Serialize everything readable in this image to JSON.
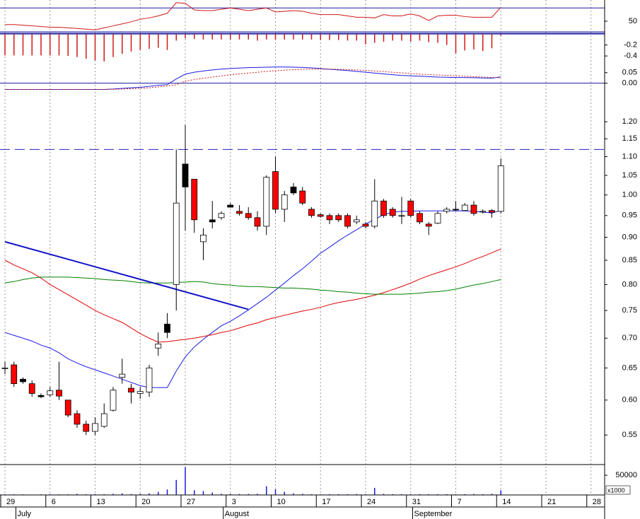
{
  "chart_data": [
    {
      "type": "line",
      "ylim": [
        34,
        82
      ],
      "yticks": [
        50
      ],
      "hlines": [
        70
      ],
      "hline_color": "#1a1aa0",
      "series": [
        {
          "color": "#d01818",
          "values": [
            45,
            45,
            44,
            43,
            42,
            41,
            41,
            40,
            39,
            38,
            37,
            40,
            43,
            46,
            49,
            53,
            55,
            58,
            62,
            78,
            77,
            67,
            66,
            66,
            68,
            70,
            68,
            66,
            68,
            70,
            64,
            65,
            66,
            65,
            62,
            60,
            60,
            60,
            58,
            56,
            56,
            55,
            60,
            58,
            58,
            61,
            58,
            51,
            58,
            59,
            59,
            57,
            56,
            56,
            56,
            71,
            null,
            null,
            null,
            null,
            null,
            null,
            null,
            null,
            null,
            null,
            null
          ]
        }
      ]
    },
    {
      "type": "bar",
      "ylim": [
        -0.54,
        0.04
      ],
      "yticks": [
        -0.2,
        -0.4
      ],
      "color": "#d01818",
      "hlines": [
        0
      ],
      "hline_color": "#1a1aa0",
      "values": [
        -0.39,
        -0.39,
        -0.39,
        -0.39,
        -0.39,
        -0.39,
        -0.39,
        -0.4,
        -0.42,
        -0.45,
        -0.48,
        -0.5,
        -0.42,
        -0.36,
        -0.32,
        -0.29,
        -0.27,
        -0.25,
        -0.29,
        -0.12,
        -0.08,
        -0.09,
        -0.1,
        -0.1,
        -0.1,
        -0.1,
        -0.1,
        -0.1,
        -0.12,
        -0.1,
        -0.1,
        -0.1,
        -0.1,
        -0.1,
        -0.1,
        -0.11,
        -0.11,
        -0.11,
        -0.12,
        -0.12,
        -0.19,
        -0.16,
        -0.14,
        -0.12,
        -0.12,
        -0.14,
        -0.12,
        -0.15,
        -0.16,
        -0.2,
        -0.35,
        -0.3,
        -0.28,
        -0.31,
        -0.26,
        -0.03,
        null,
        null,
        null,
        null,
        null,
        null,
        null,
        null,
        null,
        null,
        null
      ]
    },
    {
      "type": "line",
      "ylim": [
        -0.035,
        0.093
      ],
      "yticks": [
        0.05,
        {
          "value": 0,
          "label": "0.00"
        }
      ],
      "hlines": [
        0
      ],
      "hline_color": "#1a1aa0",
      "series": [
        {
          "color": "#1a1ae0",
          "values": [
            -0.03,
            -0.03,
            -0.03,
            -0.03,
            -0.03,
            -0.03,
            -0.03,
            -0.03,
            -0.03,
            -0.03,
            -0.03,
            -0.03,
            -0.028,
            -0.025,
            -0.022,
            -0.02,
            -0.015,
            -0.01,
            -0.007,
            0.02,
            0.043,
            0.052,
            0.058,
            0.063,
            0.067,
            0.07,
            0.072,
            0.074,
            0.075,
            0.076,
            0.077,
            0.077,
            0.076,
            0.075,
            0.073,
            0.07,
            0.066,
            0.063,
            0.06,
            0.056,
            0.052,
            0.048,
            0.044,
            0.04,
            0.037,
            0.035,
            0.033,
            0.031,
            0.029,
            0.028,
            0.027,
            0.027,
            0.026,
            0.025,
            0.024,
            0.03,
            null,
            null,
            null,
            null,
            null,
            null,
            null,
            null,
            null,
            null,
            null
          ]
        },
        {
          "color": "#d01818",
          "dash": true,
          "values": [
            -0.03,
            -0.03,
            -0.03,
            -0.03,
            -0.03,
            -0.03,
            -0.03,
            -0.03,
            -0.03,
            -0.03,
            -0.03,
            -0.03,
            -0.029,
            -0.028,
            -0.026,
            -0.024,
            -0.022,
            -0.018,
            -0.013,
            -0.008,
            0.01,
            0.017,
            0.023,
            0.029,
            0.034,
            0.04,
            0.044,
            0.048,
            0.052,
            0.056,
            0.059,
            0.062,
            0.064,
            0.066,
            0.067,
            0.067,
            0.067,
            0.066,
            0.065,
            0.063,
            0.061,
            0.058,
            0.055,
            0.052,
            0.049,
            0.046,
            0.043,
            0.041,
            0.039,
            0.037,
            0.035,
            0.033,
            0.031,
            0.029,
            0.027,
            0.026,
            null,
            null,
            null,
            null,
            null,
            null,
            null,
            null,
            null,
            null,
            null
          ]
        }
      ]
    },
    {
      "type": "candlestick",
      "log_scale": true,
      "ylim": [
        0.511,
        1.297
      ],
      "yticks": [
        {
          "value": 1.2,
          "label": "1.20"
        },
        1.15,
        {
          "value": 1.1,
          "label": "1.10"
        },
        1.05,
        {
          "value": 1,
          "label": "1.00"
        },
        0.95,
        {
          "value": 0.9,
          "label": "0.90"
        },
        0.85,
        {
          "value": 0.8,
          "label": "0.80"
        },
        0.75,
        {
          "value": 0.7,
          "label": "0.70"
        },
        0.65,
        {
          "value": 0.6,
          "label": "0.60"
        },
        0.55
      ],
      "hlines": [
        1.12
      ],
      "hline_color": "#2020c0",
      "hline_dash": true,
      "categories": [
        "29",
        null,
        null,
        null,
        null,
        "6",
        null,
        null,
        null,
        null,
        "13",
        null,
        null,
        null,
        null,
        "20",
        null,
        null,
        null,
        null,
        "27",
        null,
        null,
        null,
        null,
        "3",
        null,
        null,
        null,
        null,
        "10",
        null,
        null,
        null,
        null,
        "17",
        null,
        null,
        null,
        null,
        "24",
        null,
        null,
        null,
        null,
        "31",
        null,
        null,
        null,
        null,
        "7",
        null,
        null,
        null,
        null,
        "14",
        null,
        null,
        null,
        null,
        "21",
        null,
        null,
        null,
        null,
        "28",
        null
      ],
      "months": [
        {
          "label": "July",
          "index": 2
        },
        {
          "label": "August",
          "index": 25
        },
        {
          "label": "September",
          "index": 46
        }
      ],
      "open": [
        0.65,
        0.655,
        0.632,
        0.625,
        0.607,
        0.608,
        0.615,
        0.6,
        0.58,
        0.565,
        0.555,
        0.562,
        0.585,
        0.635,
        0.618,
        0.61,
        0.612,
        0.683,
        0.725,
        0.8,
        1.08,
        1.04,
        0.89,
        0.94,
        0.945,
        0.975,
        0.96,
        0.955,
        0.945,
        0.925,
        1.06,
        0.965,
        1.02,
        1.01,
        0.965,
        0.952,
        0.95,
        0.95,
        0.95,
        0.935,
        0.93,
        0.925,
        0.985,
        0.965,
        0.95,
        0.985,
        0.955,
        0.93,
        0.932,
        0.96,
        0.965,
        0.962,
        0.975,
        0.96,
        0.962,
        0.96,
        null,
        null,
        null,
        null,
        null,
        null,
        null,
        null,
        null,
        null,
        null
      ],
      "high": [
        0.66,
        0.66,
        0.635,
        0.63,
        0.61,
        0.62,
        0.66,
        0.6,
        0.585,
        0.57,
        0.575,
        0.595,
        0.62,
        0.665,
        0.625,
        0.62,
        0.655,
        0.71,
        0.745,
        1.12,
        1.19,
        1.04,
        0.92,
        0.985,
        0.96,
        0.98,
        0.975,
        0.97,
        0.96,
        1.05,
        1.1,
        1.01,
        1.03,
        1.02,
        0.97,
        0.955,
        0.955,
        0.955,
        0.955,
        0.95,
        0.935,
        1.04,
        0.99,
        0.97,
        0.995,
        0.99,
        0.96,
        0.935,
        0.96,
        0.97,
        0.985,
        0.98,
        0.985,
        0.965,
        0.965,
        1.095,
        null,
        null,
        null,
        null,
        null,
        null,
        null,
        null,
        null,
        null,
        null
      ],
      "low": [
        0.64,
        0.62,
        0.625,
        0.605,
        0.603,
        0.605,
        0.6,
        0.575,
        0.56,
        0.55,
        0.55,
        0.56,
        0.583,
        0.625,
        0.595,
        0.602,
        0.605,
        0.67,
        0.7,
        0.75,
        0.915,
        0.91,
        0.85,
        0.92,
        0.94,
        0.97,
        0.95,
        0.94,
        0.915,
        0.905,
        0.955,
        0.935,
        1,
        0.975,
        0.945,
        0.945,
        0.93,
        0.935,
        0.92,
        0.93,
        0.92,
        0.92,
        0.945,
        0.945,
        0.93,
        0.945,
        0.93,
        0.905,
        0.93,
        0.955,
        0.96,
        0.96,
        0.95,
        0.955,
        0.945,
        0.955,
        null,
        null,
        null,
        null,
        null,
        null,
        null,
        null,
        null,
        null,
        null
      ],
      "close": [
        0.65,
        0.625,
        0.628,
        0.61,
        0.605,
        0.614,
        0.606,
        0.578,
        0.565,
        0.555,
        0.566,
        0.58,
        0.615,
        0.64,
        0.612,
        0.613,
        0.65,
        0.69,
        0.71,
        0.98,
        1.02,
        0.94,
        0.905,
        0.935,
        0.955,
        0.97,
        0.955,
        0.945,
        0.925,
        1.045,
        0.965,
        1,
        1.005,
        0.98,
        0.95,
        0.948,
        0.94,
        0.94,
        0.925,
        0.94,
        0.925,
        0.985,
        0.95,
        0.95,
        0.95,
        0.95,
        0.935,
        0.925,
        0.955,
        0.965,
        0.965,
        0.975,
        0.955,
        0.96,
        0.958,
        1.075,
        null,
        null,
        null,
        null,
        null,
        null,
        null,
        null,
        null,
        null,
        null
      ],
      "body_colors": [
        "#ffffff",
        "#ff0000",
        "#000000",
        "#ff0000",
        "#000000",
        "#ffffff",
        "#ff0000",
        "#ff0000",
        "#ff0000",
        "#ff0000",
        "#ffffff",
        "#ffffff",
        "#ffffff",
        "#ffffff",
        "#ff0000",
        "#ffffff",
        "#ffffff",
        "#ffffff",
        "#000000",
        "#ffffff",
        "#000000",
        "#ff0000",
        "#ffffff",
        "#000000",
        "#ffffff",
        "#000000",
        "#ff0000",
        "#ff0000",
        "#ff0000",
        "#ffffff",
        "#ff0000",
        "#ffffff",
        "#000000",
        "#ff0000",
        "#ff0000",
        "#ff0000",
        "#ff0000",
        "#ff0000",
        "#ff0000",
        "#ffffff",
        "#ff0000",
        "#ffffff",
        "#ff0000",
        "#ff0000",
        "#ffffff",
        "#ff0000",
        "#ff0000",
        "#ff0000",
        "#ffffff",
        "#ffffff",
        "#000000",
        "#ffffff",
        "#ff0000",
        "#ffffff",
        "#ff0000",
        "#ffffff",
        null,
        null,
        null,
        null,
        null,
        null,
        null,
        null,
        null,
        null,
        null
      ],
      "series": [
        {
          "color": "#1a1ae6",
          "values": [
            0.71,
            0.705,
            0.7,
            0.695,
            0.688,
            0.683,
            0.675,
            0.665,
            0.658,
            0.652,
            0.647,
            0.642,
            0.637,
            0.632,
            0.627,
            0.622,
            0.619,
            0.619,
            0.619,
            0.645,
            0.668,
            0.685,
            0.698,
            0.71,
            0.722,
            0.73,
            0.74,
            0.751,
            0.763,
            0.775,
            0.789,
            0.803,
            0.818,
            0.832,
            0.848,
            0.865,
            0.878,
            0.892,
            0.905,
            0.917,
            0.93,
            0.941,
            0.952,
            0.958,
            0.96,
            0.96,
            0.961,
            0.961,
            0.961,
            0.961,
            0.961,
            0.961,
            0.96,
            0.958,
            0.956,
            0.962,
            null,
            null,
            null,
            null,
            null,
            null,
            null,
            null,
            null,
            null,
            null
          ]
        },
        {
          "color": "#e00000",
          "values": [
            0.85,
            0.84,
            0.832,
            0.824,
            0.813,
            0.8,
            0.79,
            0.78,
            0.77,
            0.76,
            0.75,
            0.742,
            0.735,
            0.728,
            0.718,
            0.708,
            0.7,
            0.693,
            0.694,
            0.696,
            0.698,
            0.7,
            0.703,
            0.706,
            0.71,
            0.713,
            0.718,
            0.723,
            0.727,
            0.733,
            0.737,
            0.741,
            0.745,
            0.749,
            0.752,
            0.756,
            0.761,
            0.765,
            0.768,
            0.771,
            0.775,
            0.779,
            0.784,
            0.79,
            0.796,
            0.803,
            0.811,
            0.818,
            0.824,
            0.83,
            0.836,
            0.843,
            0.851,
            0.858,
            0.866,
            0.874,
            null,
            null,
            null,
            null,
            null,
            null,
            null,
            null,
            null,
            null,
            null
          ]
        },
        {
          "color": "#008000",
          "values": [
            0.803,
            0.806,
            0.81,
            0.813,
            0.815,
            0.815,
            0.815,
            0.815,
            0.814,
            0.813,
            0.812,
            0.81,
            0.809,
            0.808,
            0.806,
            0.804,
            0.803,
            0.803,
            0.803,
            0.804,
            0.805,
            0.806,
            0.805,
            0.802,
            0.8,
            0.799,
            0.797,
            0.796,
            0.796,
            0.795,
            0.794,
            0.793,
            0.793,
            0.792,
            0.791,
            0.789,
            0.788,
            0.786,
            0.785,
            0.783,
            0.782,
            0.781,
            0.781,
            0.781,
            0.781,
            0.782,
            0.783,
            0.785,
            0.786,
            0.788,
            0.791,
            0.795,
            0.799,
            0.802,
            0.806,
            0.81,
            null,
            null,
            null,
            null,
            null,
            null,
            null,
            null,
            null,
            null,
            null
          ]
        }
      ],
      "trendline": {
        "color": "#1414c8",
        "points": [
          [
            0,
            0.89
          ],
          [
            27,
            0.752
          ]
        ]
      }
    },
    {
      "type": "bar",
      "ylim": [
        0,
        77000
      ],
      "yticks": [
        50000
      ],
      "unit_label": "x1000",
      "color": "#1a1ae0",
      "values": [
        2000,
        1500,
        1500,
        1000,
        1500,
        2000,
        1500,
        1500,
        3000,
        2000,
        2500,
        2000,
        3000,
        4000,
        2500,
        3000,
        4000,
        8000,
        14000,
        38000,
        71000,
        12000,
        10000,
        6000,
        3000,
        3000,
        2500,
        2500,
        3000,
        22000,
        14000,
        8000,
        4000,
        3000,
        2000,
        1500,
        2000,
        2000,
        2000,
        2500,
        2000,
        18000,
        3000,
        2000,
        2000,
        2000,
        2000,
        2000,
        2000,
        2000,
        2000,
        2000,
        2500,
        2000,
        3000,
        12000,
        null,
        null,
        null,
        null,
        null,
        null,
        null,
        null,
        null,
        null,
        null
      ]
    }
  ]
}
